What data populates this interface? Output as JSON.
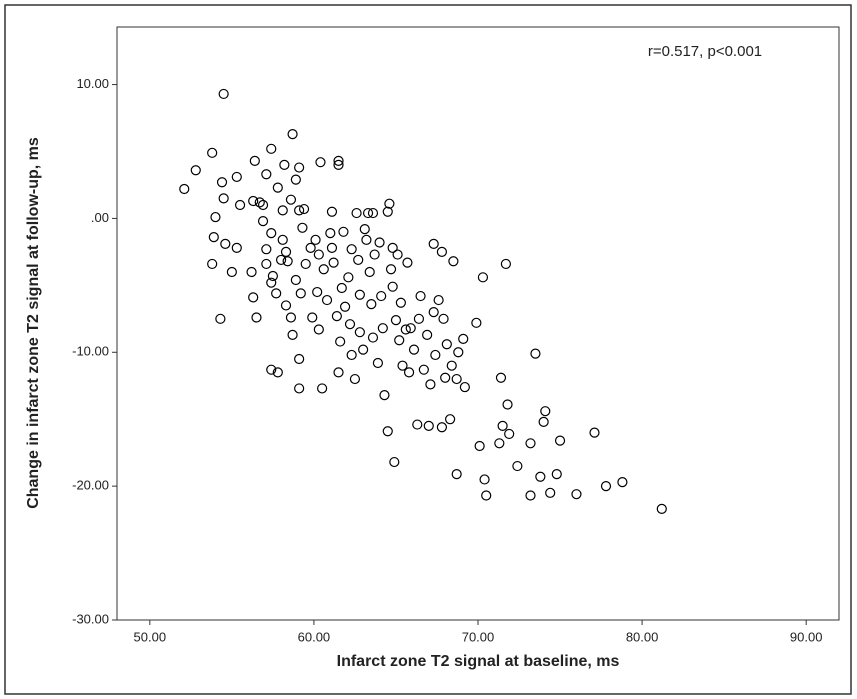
{
  "chart_data": {
    "type": "scatter",
    "annotation": "r=0.517, p<0.001",
    "x_label": "Infarct zone T2 signal at baseline, ms",
    "y_label": "Change in infarct zone T2 signal at follow-up, ms",
    "color": "#000000",
    "xlim": [
      48,
      92
    ],
    "ylim": [
      -30,
      14.3
    ],
    "xticks": [
      {
        "value": 50,
        "label": "50.00"
      },
      {
        "value": 60,
        "label": "60.00"
      },
      {
        "value": 70,
        "label": "70.00"
      },
      {
        "value": 80,
        "label": "80.00"
      },
      {
        "value": 90,
        "label": "90.00"
      }
    ],
    "yticks": [
      {
        "value": -30,
        "label": "-30.00"
      },
      {
        "value": -20,
        "label": "-20.00"
      },
      {
        "value": -10,
        "label": "-10.00"
      },
      {
        "value": 0,
        "label": ".00"
      },
      {
        "value": 10,
        "label": "10.00"
      }
    ],
    "x": [
      54.5,
      52.1,
      52.8,
      53.8,
      54.4,
      55.3,
      54.0,
      53.9,
      53.8,
      54.6,
      55.0,
      55.3,
      54.3,
      54.5,
      55.5,
      56.4,
      57.4,
      58.7,
      57.1,
      58.2,
      58.9,
      59.1,
      60.4,
      61.5,
      61.5,
      56.3,
      56.7,
      56.9,
      57.8,
      58.1,
      58.6,
      59.1,
      59.4,
      56.2,
      56.3,
      56.5,
      56.9,
      57.1,
      57.1,
      57.4,
      57.4,
      57.5,
      57.7,
      57.4,
      57.8,
      58.0,
      58.1,
      58.3,
      58.4,
      58.3,
      58.6,
      58.7,
      58.9,
      59.3,
      59.2,
      59.1,
      59.1,
      59.5,
      59.8,
      59.9,
      60.1,
      60.3,
      60.2,
      60.3,
      60.5,
      60.6,
      60.8,
      61.0,
      61.1,
      61.1,
      61.2,
      61.4,
      61.6,
      61.5,
      61.7,
      61.8,
      61.9,
      62.1,
      62.2,
      62.3,
      62.3,
      62.5,
      62.6,
      62.7,
      62.8,
      62.8,
      63.0,
      63.1,
      63.2,
      63.3,
      63.4,
      63.5,
      63.6,
      63.6,
      63.7,
      63.9,
      64.0,
      64.1,
      64.2,
      64.3,
      64.5,
      64.5,
      64.6,
      64.7,
      64.8,
      64.8,
      64.9,
      65.0,
      65.1,
      65.2,
      65.3,
      65.4,
      65.6,
      65.7,
      65.8,
      65.9,
      66.1,
      66.3,
      66.4,
      66.5,
      66.7,
      66.9,
      67.0,
      67.1,
      67.3,
      67.3,
      67.4,
      67.6,
      67.8,
      67.8,
      67.9,
      68.0,
      68.1,
      68.3,
      68.4,
      68.5,
      68.7,
      68.7,
      68.8,
      69.1,
      69.2,
      69.9,
      70.1,
      70.3,
      70.4,
      70.5,
      71.3,
      71.4,
      71.5,
      71.7,
      71.8,
      71.9,
      72.4,
      73.2,
      73.2,
      73.5,
      73.8,
      74.0,
      74.1,
      74.4,
      74.8,
      75.0,
      76.0,
      77.1,
      77.8,
      78.8,
      81.2
    ],
    "values": [
      9.3,
      2.2,
      3.6,
      4.9,
      2.7,
      3.1,
      0.1,
      -1.4,
      -3.4,
      -1.9,
      -4.0,
      -2.2,
      -7.5,
      1.5,
      1.0,
      4.3,
      5.2,
      6.3,
      3.3,
      4.0,
      2.9,
      3.8,
      4.2,
      4.3,
      4.0,
      1.3,
      1.2,
      1.0,
      2.3,
      0.6,
      1.4,
      0.6,
      0.7,
      -4.0,
      -5.9,
      -7.4,
      -0.2,
      -2.3,
      -3.4,
      -4.8,
      -1.1,
      -4.3,
      -5.6,
      -11.3,
      -11.5,
      -3.1,
      -1.6,
      -2.5,
      -3.2,
      -6.5,
      -7.4,
      -8.7,
      -4.6,
      -0.7,
      -5.6,
      -10.5,
      -12.7,
      -3.4,
      -2.2,
      -7.4,
      -1.6,
      -2.7,
      -5.5,
      -8.3,
      -12.7,
      -3.8,
      -6.1,
      -1.1,
      -2.2,
      0.5,
      -3.3,
      -7.3,
      -9.2,
      -11.5,
      -5.2,
      -1.0,
      -6.6,
      -4.4,
      -7.9,
      -10.2,
      -2.3,
      -12.0,
      0.4,
      -3.1,
      -5.7,
      -8.5,
      -9.8,
      -0.8,
      -1.6,
      0.4,
      -4.0,
      -6.4,
      -8.9,
      0.4,
      -2.7,
      -10.8,
      -1.8,
      -5.8,
      -8.2,
      -13.2,
      0.5,
      -15.9,
      1.1,
      -3.8,
      -5.1,
      -2.2,
      -18.2,
      -7.6,
      -2.7,
      -9.1,
      -6.3,
      -11.0,
      -8.3,
      -3.3,
      -11.5,
      -8.2,
      -9.8,
      -15.4,
      -7.5,
      -5.8,
      -11.3,
      -8.7,
      -15.5,
      -12.4,
      -1.9,
      -7.0,
      -10.2,
      -6.1,
      -2.5,
      -15.6,
      -7.5,
      -11.9,
      -9.4,
      -15.0,
      -11.0,
      -3.2,
      -12.0,
      -19.1,
      -10.0,
      -9.0,
      -12.6,
      -7.8,
      -17.0,
      -4.4,
      -19.5,
      -20.7,
      -16.8,
      -11.9,
      -15.5,
      -3.4,
      -13.9,
      -16.1,
      -18.5,
      -20.7,
      -16.8,
      -10.1,
      -19.3,
      -15.2,
      -14.4,
      -20.5,
      -19.1,
      -16.6,
      -20.6,
      -16.0,
      -20.0,
      -19.7,
      -21.7
    ]
  }
}
